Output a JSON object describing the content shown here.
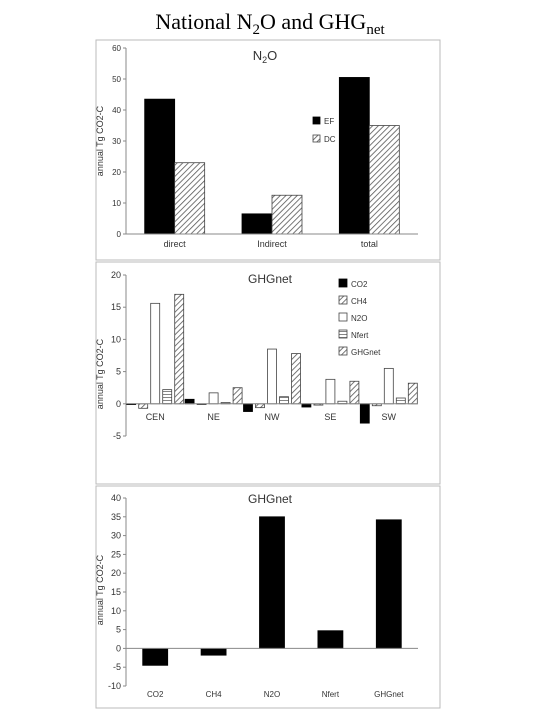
{
  "page_title": {
    "main": "National N",
    "sub1": "2",
    "mid": "O and GHG",
    "sub2": "net"
  },
  "colors": {
    "black": "#000000",
    "hatch": "#555555",
    "axis": "#888888",
    "text": "#333333"
  },
  "chart_data": [
    {
      "type": "bar",
      "title": {
        "main": "N",
        "sub": "2",
        "rest": "O"
      },
      "ylabel": "annual Tg CO2-C",
      "categories": [
        "direct",
        "Indirect",
        "total"
      ],
      "ylim": [
        0,
        60
      ],
      "yticks": [
        0,
        10,
        20,
        30,
        40,
        50,
        60
      ],
      "series": [
        {
          "name": "EF",
          "pattern": "solid",
          "values": [
            43.5,
            6.5,
            50.5
          ]
        },
        {
          "name": "DC",
          "pattern": "hatch",
          "values": [
            23,
            12.5,
            35
          ]
        }
      ],
      "legend": "center-right"
    },
    {
      "type": "bar",
      "title": "GHGnet",
      "ylabel": "annual Tg CO2-C",
      "categories": [
        "CEN",
        "NE",
        "NW",
        "SE",
        "SW"
      ],
      "ylim": [
        -5,
        20
      ],
      "yticks": [
        -5,
        0,
        5,
        10,
        15,
        20
      ],
      "series": [
        {
          "name": "CO2",
          "pattern": "solid",
          "values": [
            -0.1,
            0.7,
            -1.2,
            -0.5,
            -3
          ]
        },
        {
          "name": "CH4",
          "pattern": "hatch",
          "values": [
            -0.7,
            -0.1,
            -0.6,
            -0.2,
            -0.3
          ]
        },
        {
          "name": "N2O",
          "pattern": "white",
          "values": [
            15.6,
            1.7,
            8.5,
            3.8,
            5.5
          ]
        },
        {
          "name": "Nfert",
          "pattern": "hlines",
          "values": [
            2.2,
            0.2,
            1.1,
            0.4,
            0.9
          ]
        },
        {
          "name": "GHGnet",
          "pattern": "hatch",
          "values": [
            17,
            2.5,
            7.8,
            3.5,
            3.2
          ]
        }
      ],
      "legend": "top-right"
    },
    {
      "type": "bar",
      "title": "GHGnet",
      "ylabel": "annual Tg CO2-C",
      "categories": [
        "CO2",
        "CH4",
        "N2O",
        "Nfert",
        "GHGnet"
      ],
      "ylim": [
        -10,
        40
      ],
      "yticks": [
        -10,
        -5,
        0,
        5,
        10,
        15,
        20,
        25,
        30,
        35,
        40
      ],
      "series": [
        {
          "pattern": "solid",
          "values": [
            -4.5,
            -1.8,
            35,
            4.7,
            34.2
          ]
        }
      ]
    }
  ]
}
